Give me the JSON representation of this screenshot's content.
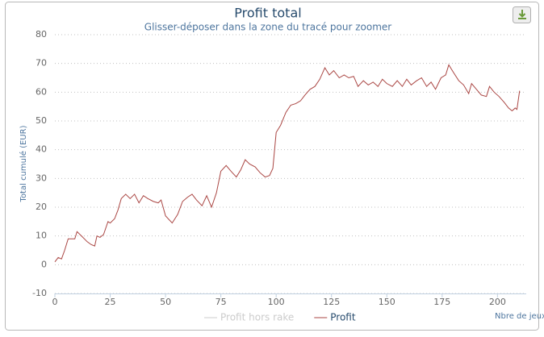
{
  "chart_data": {
    "type": "line",
    "title": "Profit total",
    "subtitle": "Glisser-déposer dans la zone du tracé pour zoomer",
    "x_label": "Nbre de jeux",
    "y_label": "Total cumulé (EUR)",
    "xlim": [
      0,
      213
    ],
    "xticks": [
      0,
      25,
      50,
      75,
      100,
      125,
      150,
      175,
      200
    ],
    "ylim": [
      -10,
      80
    ],
    "yticks": [
      -10,
      0,
      10,
      20,
      30,
      40,
      50,
      60,
      70,
      80
    ],
    "grid": true,
    "legend": "bottom",
    "x": [
      0,
      1.5,
      3,
      4.4,
      6,
      8,
      9,
      10,
      12,
      14.6,
      16.4,
      18,
      19,
      20.4,
      22,
      24,
      25,
      27,
      28.5,
      30,
      32,
      34,
      36,
      38,
      40,
      42,
      44.5,
      46.7,
      48,
      50,
      53,
      55.5,
      57.7,
      60,
      62,
      64,
      66.5,
      68.6,
      70.8,
      73,
      75,
      77.4,
      79.6,
      82,
      84,
      86,
      88,
      90.5,
      92.7,
      95,
      97,
      98.5,
      100,
      102,
      104.4,
      106.6,
      108.8,
      111,
      113,
      115.3,
      117.5,
      119.7,
      122,
      124,
      126,
      128.5,
      130.7,
      132.8,
      135,
      137,
      139.4,
      141.6,
      143.8,
      146,
      148,
      150,
      152.5,
      154.7,
      157,
      159,
      161,
      163.5,
      165.7,
      168,
      170,
      172,
      174.5,
      176.6,
      178,
      180,
      182.5,
      184.7,
      187,
      188.3,
      190.5,
      192.7,
      195,
      196.4,
      198.5,
      200.7,
      203,
      205,
      206.6,
      208,
      208.8,
      210
    ],
    "series": [
      {
        "name": "Profit hors rake",
        "color": "#cccccc",
        "visible": false
      },
      {
        "name": "Profit",
        "color": "#aa4643",
        "visible": true,
        "values": [
          1,
          2.5,
          2,
          5,
          9,
          9,
          9,
          11.5,
          10,
          8,
          7,
          6.5,
          10,
          9.5,
          10.5,
          15,
          14.5,
          16,
          19,
          23,
          24.5,
          23,
          24.5,
          21.5,
          24,
          23,
          22,
          21.5,
          22.5,
          17,
          14.5,
          17.5,
          22,
          23.5,
          24.5,
          22.5,
          20.5,
          24,
          20,
          25,
          32.5,
          34.5,
          32.5,
          30.5,
          33,
          36.5,
          35,
          34,
          32,
          30.5,
          31,
          33.5,
          46,
          48.5,
          53,
          55.5,
          56,
          57,
          59,
          61,
          62,
          64.5,
          68.5,
          66,
          67.5,
          65,
          66,
          65,
          65.5,
          62,
          64,
          62.5,
          63.5,
          62,
          64.5,
          63,
          62,
          64,
          62,
          64.5,
          62.5,
          64,
          65,
          62,
          63.5,
          61,
          65,
          66,
          69.5,
          67,
          64,
          62.5,
          59.5,
          63,
          61,
          59,
          58.5,
          62,
          60,
          58.5,
          56.5,
          54.5,
          53.5,
          54.5,
          54,
          60.5
        ]
      }
    ]
  }
}
